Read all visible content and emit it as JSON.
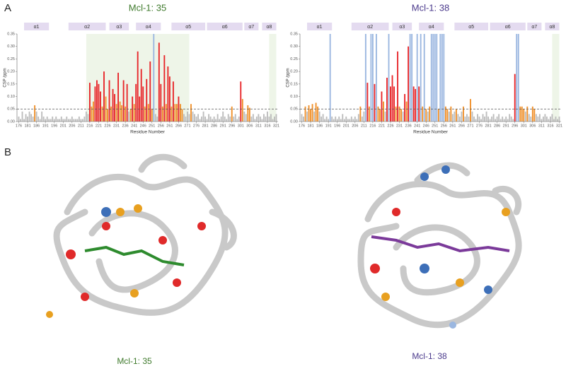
{
  "panels": {
    "a": "A",
    "b": "B"
  },
  "structure_captions": [
    "Mcl-1: 35",
    "Mcl-1: 38"
  ],
  "chart_data": [
    {
      "type": "bar",
      "title": "Mcl-1: 35",
      "title_color": "#3f7a2c",
      "xlabel": "Residue Number",
      "ylabel": "CSP /ppm",
      "xlim": [
        175,
        322
      ],
      "ylim": [
        0,
        0.35
      ],
      "xticks": [
        176,
        181,
        186,
        191,
        196,
        201,
        206,
        211,
        216,
        221,
        226,
        231,
        236,
        241,
        246,
        251,
        256,
        261,
        266,
        271,
        276,
        281,
        286,
        291,
        296,
        301,
        306,
        311,
        316,
        321
      ],
      "yticks": [
        {
          "value": 0,
          "label": "0.00"
        },
        0.05,
        {
          "value": 0.1,
          "label": "0.10"
        },
        0.15,
        {
          "value": 0.2,
          "label": "0.20"
        },
        0.25,
        {
          "value": 0.3,
          "label": "0.30"
        },
        0.35
      ],
      "threshold": 0.05,
      "shaded": [
        [
          214,
          272
        ],
        [
          317,
          321
        ]
      ],
      "helices": [
        {
          "label": "α1",
          "start": 179,
          "end": 193
        },
        {
          "label": "α2",
          "start": 204,
          "end": 225
        },
        {
          "label": "α3",
          "start": 227,
          "end": 238
        },
        {
          "label": "α4",
          "start": 242,
          "end": 256
        },
        {
          "label": "α5",
          "start": 262,
          "end": 281
        },
        {
          "label": "α6",
          "start": 282,
          "end": 302
        },
        {
          "label": "α7",
          "start": 303,
          "end": 311
        },
        {
          "label": "α8",
          "start": 313,
          "end": 321
        }
      ],
      "x": [
        176,
        177,
        178,
        179,
        180,
        181,
        182,
        183,
        184,
        185,
        186,
        187,
        188,
        189,
        190,
        191,
        192,
        193,
        194,
        195,
        196,
        197,
        198,
        199,
        200,
        201,
        202,
        203,
        204,
        205,
        206,
        207,
        208,
        209,
        210,
        211,
        212,
        213,
        214,
        215,
        216,
        217,
        218,
        219,
        220,
        221,
        222,
        223,
        224,
        225,
        226,
        227,
        228,
        229,
        230,
        231,
        232,
        233,
        234,
        235,
        236,
        237,
        238,
        239,
        240,
        241,
        242,
        243,
        244,
        245,
        246,
        247,
        248,
        249,
        250,
        251,
        252,
        253,
        254,
        255,
        256,
        257,
        258,
        259,
        260,
        261,
        262,
        263,
        264,
        265,
        266,
        267,
        268,
        269,
        270,
        271,
        272,
        273,
        274,
        275,
        276,
        277,
        278,
        279,
        280,
        281,
        282,
        283,
        284,
        285,
        286,
        287,
        288,
        289,
        290,
        291,
        292,
        293,
        294,
        295,
        296,
        297,
        298,
        299,
        300,
        301,
        302,
        303,
        304,
        305,
        306,
        307,
        308,
        309,
        310,
        311,
        312,
        313,
        314,
        315,
        316,
        317,
        318,
        319,
        320,
        321
      ],
      "values": [
        0.02,
        0.01,
        0.04,
        0.01,
        0.03,
        0.02,
        0.04,
        0.03,
        0.02,
        0.065,
        0.04,
        0.02,
        0.01,
        0.04,
        0.02,
        0.01,
        0.02,
        0.01,
        0.01,
        0.02,
        0.01,
        0.02,
        0.01,
        0.01,
        0.02,
        0.01,
        0.01,
        0.02,
        0.01,
        0.01,
        0.02,
        0.01,
        0.01,
        0.01,
        0.02,
        0.01,
        0.01,
        0.02,
        0.04,
        0.03,
        0.155,
        0.06,
        0.08,
        0.14,
        0.165,
        0.15,
        0.12,
        0.06,
        0.2,
        0.1,
        0.05,
        0.165,
        0.06,
        0.13,
        0.11,
        0.07,
        0.195,
        0.08,
        0.065,
        0.165,
        0.06,
        0.15,
        0.04,
        0.05,
        0.1,
        0.07,
        0.15,
        0.28,
        0.1,
        0.21,
        0.14,
        0.06,
        0.17,
        0.07,
        0.24,
        0.05,
        0.35,
        0.03,
        0.02,
        0.315,
        0.15,
        0.06,
        0.265,
        0.07,
        0.22,
        0.18,
        0.06,
        0.16,
        0.07,
        0.07,
        0.1,
        0.07,
        0.05,
        0.03,
        0.02,
        0.04,
        0.03,
        0.07,
        0.04,
        0.03,
        0.02,
        0.03,
        0.01,
        0.02,
        0.04,
        0.02,
        0.01,
        0.03,
        0.02,
        0.01,
        0.02,
        0.01,
        0.03,
        0.01,
        0.02,
        0.04,
        0.02,
        0.01,
        0.03,
        0.02,
        0.06,
        0.02,
        0.03,
        0.01,
        0.02,
        0.16,
        0.09,
        0.04,
        0.03,
        0.065,
        0.055,
        0.02,
        0.03,
        0.01,
        0.02,
        0.03,
        0.02,
        0.01,
        0.03,
        0.02,
        0.04,
        0.02,
        0.03,
        0.01,
        0.02,
        0.03
      ],
      "colors": [
        "#bdbdbd",
        "#bdbdbd",
        "#bdbdbd",
        "#bdbdbd",
        "#bdbdbd",
        "#bdbdbd",
        "#bdbdbd",
        "#bdbdbd",
        "#bdbdbd",
        "#f0902a",
        "#bdbdbd",
        "#bdbdbd",
        "#bdbdbd",
        "#bdbdbd",
        "#bdbdbd",
        "#bdbdbd",
        "#bdbdbd",
        "#bdbdbd",
        "#bdbdbd",
        "#bdbdbd",
        "#bdbdbd",
        "#bdbdbd",
        "#bdbdbd",
        "#bdbdbd",
        "#bdbdbd",
        "#bdbdbd",
        "#bdbdbd",
        "#bdbdbd",
        "#bdbdbd",
        "#bdbdbd",
        "#bdbdbd",
        "#bdbdbd",
        "#bdbdbd",
        "#bdbdbd",
        "#bdbdbd",
        "#bdbdbd",
        "#bdbdbd",
        "#bdbdbd",
        "#bdbdbd",
        "#bdbdbd",
        "#e8262a",
        "#f0902a",
        "#f0902a",
        "#e8262a",
        "#e8262a",
        "#e8262a",
        "#e8262a",
        "#f0902a",
        "#e8262a",
        "#f0902a",
        "#f0902a",
        "#e8262a",
        "#f0902a",
        "#e8262a",
        "#e8262a",
        "#f0902a",
        "#e8262a",
        "#f0902a",
        "#f0902a",
        "#e8262a",
        "#f0902a",
        "#e8262a",
        "#bdbdbd",
        "#f0902a",
        "#e8262a",
        "#f0902a",
        "#e8262a",
        "#e8262a",
        "#e8262a",
        "#e8262a",
        "#e8262a",
        "#f0902a",
        "#e8262a",
        "#f0902a",
        "#e8262a",
        "#f0902a",
        "#9bb7e0",
        "#bdbdbd",
        "#bdbdbd",
        "#e8262a",
        "#e8262a",
        "#f0902a",
        "#e8262a",
        "#f0902a",
        "#e8262a",
        "#e8262a",
        "#f0902a",
        "#e8262a",
        "#f0902a",
        "#f0902a",
        "#e8262a",
        "#f0902a",
        "#f0902a",
        "#bdbdbd",
        "#bdbdbd",
        "#bdbdbd",
        "#bdbdbd",
        "#f0902a",
        "#bdbdbd",
        "#bdbdbd",
        "#bdbdbd",
        "#bdbdbd",
        "#bdbdbd",
        "#bdbdbd",
        "#bdbdbd",
        "#bdbdbd",
        "#bdbdbd",
        "#bdbdbd",
        "#bdbdbd",
        "#bdbdbd",
        "#bdbdbd",
        "#bdbdbd",
        "#bdbdbd",
        "#bdbdbd",
        "#bdbdbd",
        "#bdbdbd",
        "#bdbdbd",
        "#bdbdbd",
        "#bdbdbd",
        "#bdbdbd",
        "#f0902a",
        "#bdbdbd",
        "#bdbdbd",
        "#bdbdbd",
        "#bdbdbd",
        "#e8262a",
        "#f0902a",
        "#bdbdbd",
        "#bdbdbd",
        "#f0902a",
        "#f0902a",
        "#bdbdbd",
        "#bdbdbd",
        "#bdbdbd",
        "#bdbdbd",
        "#bdbdbd",
        "#bdbdbd",
        "#bdbdbd",
        "#bdbdbd",
        "#bdbdbd",
        "#bdbdbd",
        "#bdbdbd",
        "#bdbdbd",
        "#bdbdbd",
        "#bdbdbd",
        "#bdbdbd"
      ]
    },
    {
      "type": "bar",
      "title": "Mcl-1: 38",
      "title_color": "#4b3a8c",
      "xlabel": "Residue Number",
      "ylabel": "CSP /ppm",
      "xlim": [
        175,
        322
      ],
      "ylim": [
        0,
        0.35
      ],
      "xticks": [
        176,
        181,
        186,
        191,
        196,
        201,
        206,
        211,
        216,
        221,
        226,
        231,
        236,
        241,
        246,
        251,
        256,
        261,
        266,
        271,
        276,
        281,
        286,
        291,
        296,
        301,
        306,
        311,
        316,
        321
      ],
      "yticks": [
        {
          "value": 0,
          "label": "0.00"
        },
        0.05,
        {
          "value": 0.1,
          "label": "0.10"
        },
        0.15,
        {
          "value": 0.2,
          "label": "0.20"
        },
        0.25,
        {
          "value": 0.3,
          "label": "0.30"
        },
        0.35
      ],
      "threshold": 0.05,
      "shaded": [
        [
          317,
          321
        ]
      ],
      "helices": [
        {
          "label": "α1",
          "start": 179,
          "end": 193
        },
        {
          "label": "α2",
          "start": 204,
          "end": 225
        },
        {
          "label": "α3",
          "start": 227,
          "end": 238
        },
        {
          "label": "α4",
          "start": 242,
          "end": 256
        },
        {
          "label": "α5",
          "start": 262,
          "end": 281
        },
        {
          "label": "α6",
          "start": 282,
          "end": 302
        },
        {
          "label": "α7",
          "start": 303,
          "end": 311
        },
        {
          "label": "α8",
          "start": 313,
          "end": 321
        }
      ],
      "x": [
        176,
        177,
        178,
        179,
        180,
        181,
        182,
        183,
        184,
        185,
        186,
        187,
        188,
        189,
        190,
        191,
        192,
        193,
        194,
        195,
        196,
        197,
        198,
        199,
        200,
        201,
        202,
        203,
        204,
        205,
        206,
        207,
        208,
        209,
        210,
        211,
        212,
        213,
        214,
        215,
        216,
        217,
        218,
        219,
        220,
        221,
        222,
        223,
        224,
        225,
        226,
        227,
        228,
        229,
        230,
        231,
        232,
        233,
        234,
        235,
        236,
        237,
        238,
        239,
        240,
        241,
        242,
        243,
        244,
        245,
        246,
        247,
        248,
        249,
        250,
        251,
        252,
        253,
        254,
        255,
        256,
        257,
        258,
        259,
        260,
        261,
        262,
        263,
        264,
        265,
        266,
        267,
        268,
        269,
        270,
        271,
        272,
        273,
        274,
        275,
        276,
        277,
        278,
        279,
        280,
        281,
        282,
        283,
        284,
        285,
        286,
        287,
        288,
        289,
        290,
        291,
        292,
        293,
        294,
        295,
        296,
        297,
        298,
        299,
        300,
        301,
        302,
        303,
        304,
        305,
        306,
        307,
        308,
        309,
        310,
        311,
        312,
        313,
        314,
        315,
        316,
        317,
        318,
        319,
        320,
        321
      ],
      "values": [
        0.03,
        0.02,
        0.06,
        0.04,
        0.065,
        0.05,
        0.07,
        0.04,
        0.075,
        0.06,
        0.04,
        0.02,
        0.03,
        0.01,
        0.02,
        0.01,
        0.35,
        0.02,
        0.01,
        0.02,
        0.01,
        0.02,
        0.01,
        0.03,
        0.01,
        0.02,
        0.01,
        0.01,
        0.02,
        0.01,
        0.02,
        0.01,
        0.03,
        0.06,
        0.02,
        0.04,
        0.35,
        0.155,
        0.06,
        0.35,
        0.35,
        0.15,
        0.35,
        0.06,
        0.05,
        0.12,
        0.08,
        0.04,
        0.175,
        0.35,
        0.14,
        0.185,
        0.14,
        0.06,
        0.28,
        0.06,
        0.05,
        0.04,
        0.11,
        0.08,
        0.3,
        0.35,
        0.35,
        0.14,
        0.13,
        0.35,
        0.14,
        0.35,
        0.06,
        0.35,
        0.05,
        0.04,
        0.06,
        0.35,
        0.35,
        0.35,
        0.35,
        0.05,
        0.35,
        0.35,
        0.35,
        0.06,
        0.05,
        0.04,
        0.06,
        0.03,
        0.04,
        0.05,
        0.03,
        0.02,
        0.04,
        0.06,
        0.02,
        0.03,
        0.02,
        0.09,
        0.04,
        0.02,
        0.01,
        0.03,
        0.02,
        0.01,
        0.03,
        0.02,
        0.04,
        0.02,
        0.01,
        0.02,
        0.03,
        0.01,
        0.02,
        0.03,
        0.01,
        0.02,
        0.01,
        0.02,
        0.01,
        0.03,
        0.02,
        0.01,
        0.19,
        0.35,
        0.35,
        0.06,
        0.06,
        0.05,
        0.04,
        0.06,
        0.03,
        0.02,
        0.06,
        0.05,
        0.03,
        0.02,
        0.03,
        0.01,
        0.02,
        0.03,
        0.02,
        0.01,
        0.02,
        0.03,
        0.01,
        0.02,
        0.01,
        0.02
      ],
      "colors": [
        "#bdbdbd",
        "#bdbdbd",
        "#f0902a",
        "#bdbdbd",
        "#f0902a",
        "#f0902a",
        "#f0902a",
        "#bdbdbd",
        "#f0902a",
        "#f0902a",
        "#bdbdbd",
        "#bdbdbd",
        "#bdbdbd",
        "#bdbdbd",
        "#bdbdbd",
        "#bdbdbd",
        "#9bb7e0",
        "#bdbdbd",
        "#bdbdbd",
        "#bdbdbd",
        "#bdbdbd",
        "#bdbdbd",
        "#bdbdbd",
        "#bdbdbd",
        "#bdbdbd",
        "#bdbdbd",
        "#bdbdbd",
        "#bdbdbd",
        "#bdbdbd",
        "#bdbdbd",
        "#bdbdbd",
        "#bdbdbd",
        "#bdbdbd",
        "#f0902a",
        "#bdbdbd",
        "#bdbdbd",
        "#9bb7e0",
        "#e8262a",
        "#f0902a",
        "#9bb7e0",
        "#9bb7e0",
        "#e8262a",
        "#9bb7e0",
        "#f0902a",
        "#f0902a",
        "#e8262a",
        "#f0902a",
        "#bdbdbd",
        "#e8262a",
        "#9bb7e0",
        "#e8262a",
        "#e8262a",
        "#e8262a",
        "#f0902a",
        "#e8262a",
        "#f0902a",
        "#f0902a",
        "#bdbdbd",
        "#e8262a",
        "#f0902a",
        "#e8262a",
        "#9bb7e0",
        "#9bb7e0",
        "#e8262a",
        "#e8262a",
        "#9bb7e0",
        "#e8262a",
        "#9bb7e0",
        "#f0902a",
        "#9bb7e0",
        "#f0902a",
        "#bdbdbd",
        "#f0902a",
        "#9bb7e0",
        "#9bb7e0",
        "#9bb7e0",
        "#9bb7e0",
        "#f0902a",
        "#9bb7e0",
        "#9bb7e0",
        "#9bb7e0",
        "#f0902a",
        "#f0902a",
        "#bdbdbd",
        "#f0902a",
        "#bdbdbd",
        "#bdbdbd",
        "#f0902a",
        "#bdbdbd",
        "#bdbdbd",
        "#bdbdbd",
        "#f0902a",
        "#bdbdbd",
        "#bdbdbd",
        "#bdbdbd",
        "#f0902a",
        "#bdbdbd",
        "#bdbdbd",
        "#bdbdbd",
        "#bdbdbd",
        "#bdbdbd",
        "#bdbdbd",
        "#bdbdbd",
        "#bdbdbd",
        "#bdbdbd",
        "#bdbdbd",
        "#bdbdbd",
        "#bdbdbd",
        "#bdbdbd",
        "#bdbdbd",
        "#bdbdbd",
        "#bdbdbd",
        "#bdbdbd",
        "#bdbdbd",
        "#bdbdbd",
        "#bdbdbd",
        "#bdbdbd",
        "#bdbdbd",
        "#bdbdbd",
        "#bdbdbd",
        "#e8262a",
        "#9bb7e0",
        "#9bb7e0",
        "#f0902a",
        "#f0902a",
        "#f0902a",
        "#bdbdbd",
        "#f0902a",
        "#bdbdbd",
        "#bdbdbd",
        "#f0902a",
        "#f0902a",
        "#bdbdbd",
        "#bdbdbd",
        "#bdbdbd",
        "#bdbdbd",
        "#bdbdbd",
        "#bdbdbd",
        "#bdbdbd",
        "#bdbdbd",
        "#bdbdbd",
        "#bdbdbd",
        "#bdbdbd",
        "#bdbdbd",
        "#bdbdbd",
        "#bdbdbd"
      ]
    }
  ]
}
